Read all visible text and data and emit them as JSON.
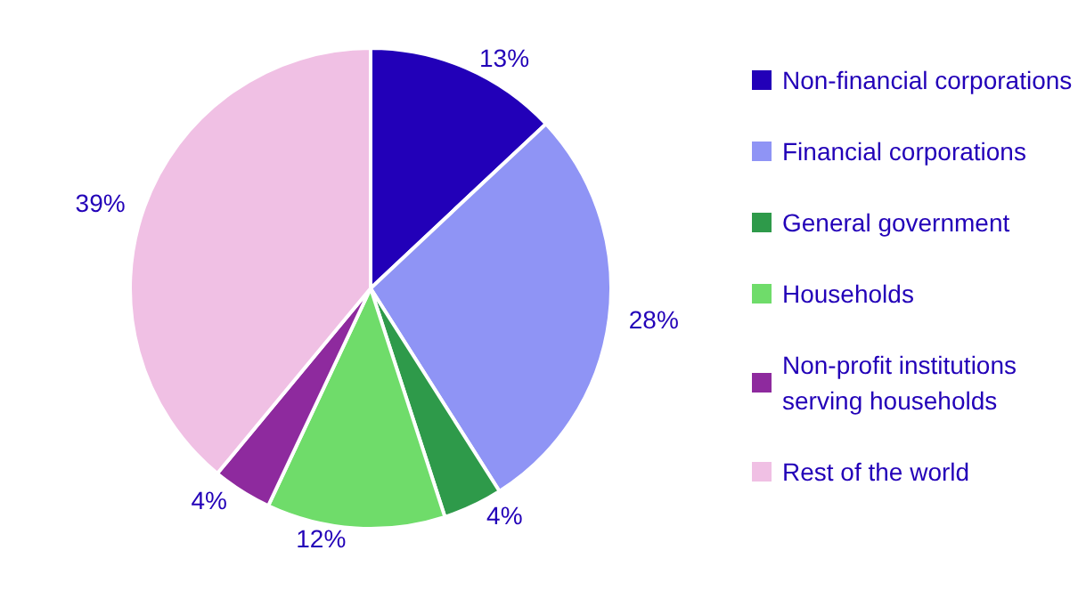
{
  "chart_data": {
    "type": "pie",
    "categories": [
      "Non-financial corporations",
      "Financial corporations",
      "General government",
      "Households",
      "Non-profit institutions serving households",
      "Rest of the world"
    ],
    "values": [
      13,
      28,
      4,
      12,
      4,
      39
    ],
    "value_labels": [
      "13%",
      "28%",
      "4%",
      "12%",
      "4%",
      "39%"
    ],
    "colors": [
      "#2200b8",
      "#8f94f5",
      "#2e9a4a",
      "#6fdc6a",
      "#8e2a9e",
      "#f0c0e4"
    ],
    "legend": "right"
  }
}
